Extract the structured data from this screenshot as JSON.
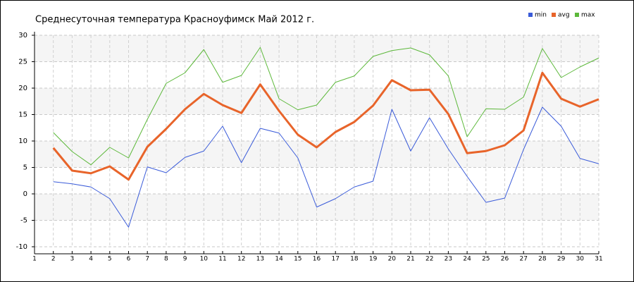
{
  "chart_data": {
    "type": "line",
    "title": "Среднесуточная температура Красноуфимск  Май 2012 г.",
    "x": [
      2,
      3,
      4,
      5,
      6,
      7,
      8,
      9,
      10,
      11,
      12,
      13,
      14,
      15,
      16,
      17,
      18,
      19,
      20,
      21,
      22,
      23,
      24,
      25,
      26,
      27,
      28,
      29,
      30,
      31
    ],
    "xlim": [
      1,
      31
    ],
    "xticks": [
      1,
      2,
      3,
      4,
      5,
      6,
      7,
      8,
      9,
      10,
      11,
      12,
      13,
      14,
      15,
      16,
      17,
      18,
      19,
      20,
      21,
      22,
      23,
      24,
      25,
      26,
      27,
      28,
      29,
      30,
      31
    ],
    "ylim": [
      -10,
      30
    ],
    "yticks": [
      -10,
      -5,
      0,
      5,
      10,
      15,
      20,
      25,
      30
    ],
    "grid": true,
    "legend": "top-right",
    "series": [
      {
        "name": "min",
        "color": "#3a5bd9",
        "values": [
          2.3,
          1.9,
          1.3,
          -0.9,
          -6.3,
          5.1,
          4,
          6.9,
          8.1,
          12.8,
          5.9,
          12.4,
          11.5,
          6.8,
          -2.5,
          -0.9,
          1.3,
          2.4,
          16,
          8.1,
          14.4,
          8.5,
          3.3,
          -1.6,
          -0.8,
          8.4,
          16.4,
          12.8,
          6.7,
          5.7
        ]
      },
      {
        "name": "avg",
        "color": "#e8642a",
        "values": [
          8.7,
          4.4,
          3.9,
          5.2,
          2.7,
          8.9,
          12.3,
          16,
          18.9,
          16.8,
          15.3,
          20.7,
          15.7,
          11.2,
          8.8,
          11.7,
          13.6,
          16.7,
          21.5,
          19.6,
          19.7,
          15.1,
          7.7,
          8.1,
          9.2,
          12,
          22.9,
          18,
          16.5,
          17.9
        ]
      },
      {
        "name": "max",
        "color": "#5cb83a",
        "values": [
          11.6,
          8,
          5.5,
          8.8,
          6.8,
          14.1,
          20.9,
          22.9,
          27.3,
          21.1,
          22.4,
          27.7,
          18,
          15.9,
          16.8,
          21.1,
          22.3,
          26,
          27.1,
          27.6,
          26.3,
          22.3,
          10.8,
          16.1,
          16,
          18.3,
          27.5,
          22,
          24,
          25.7
        ]
      }
    ]
  }
}
